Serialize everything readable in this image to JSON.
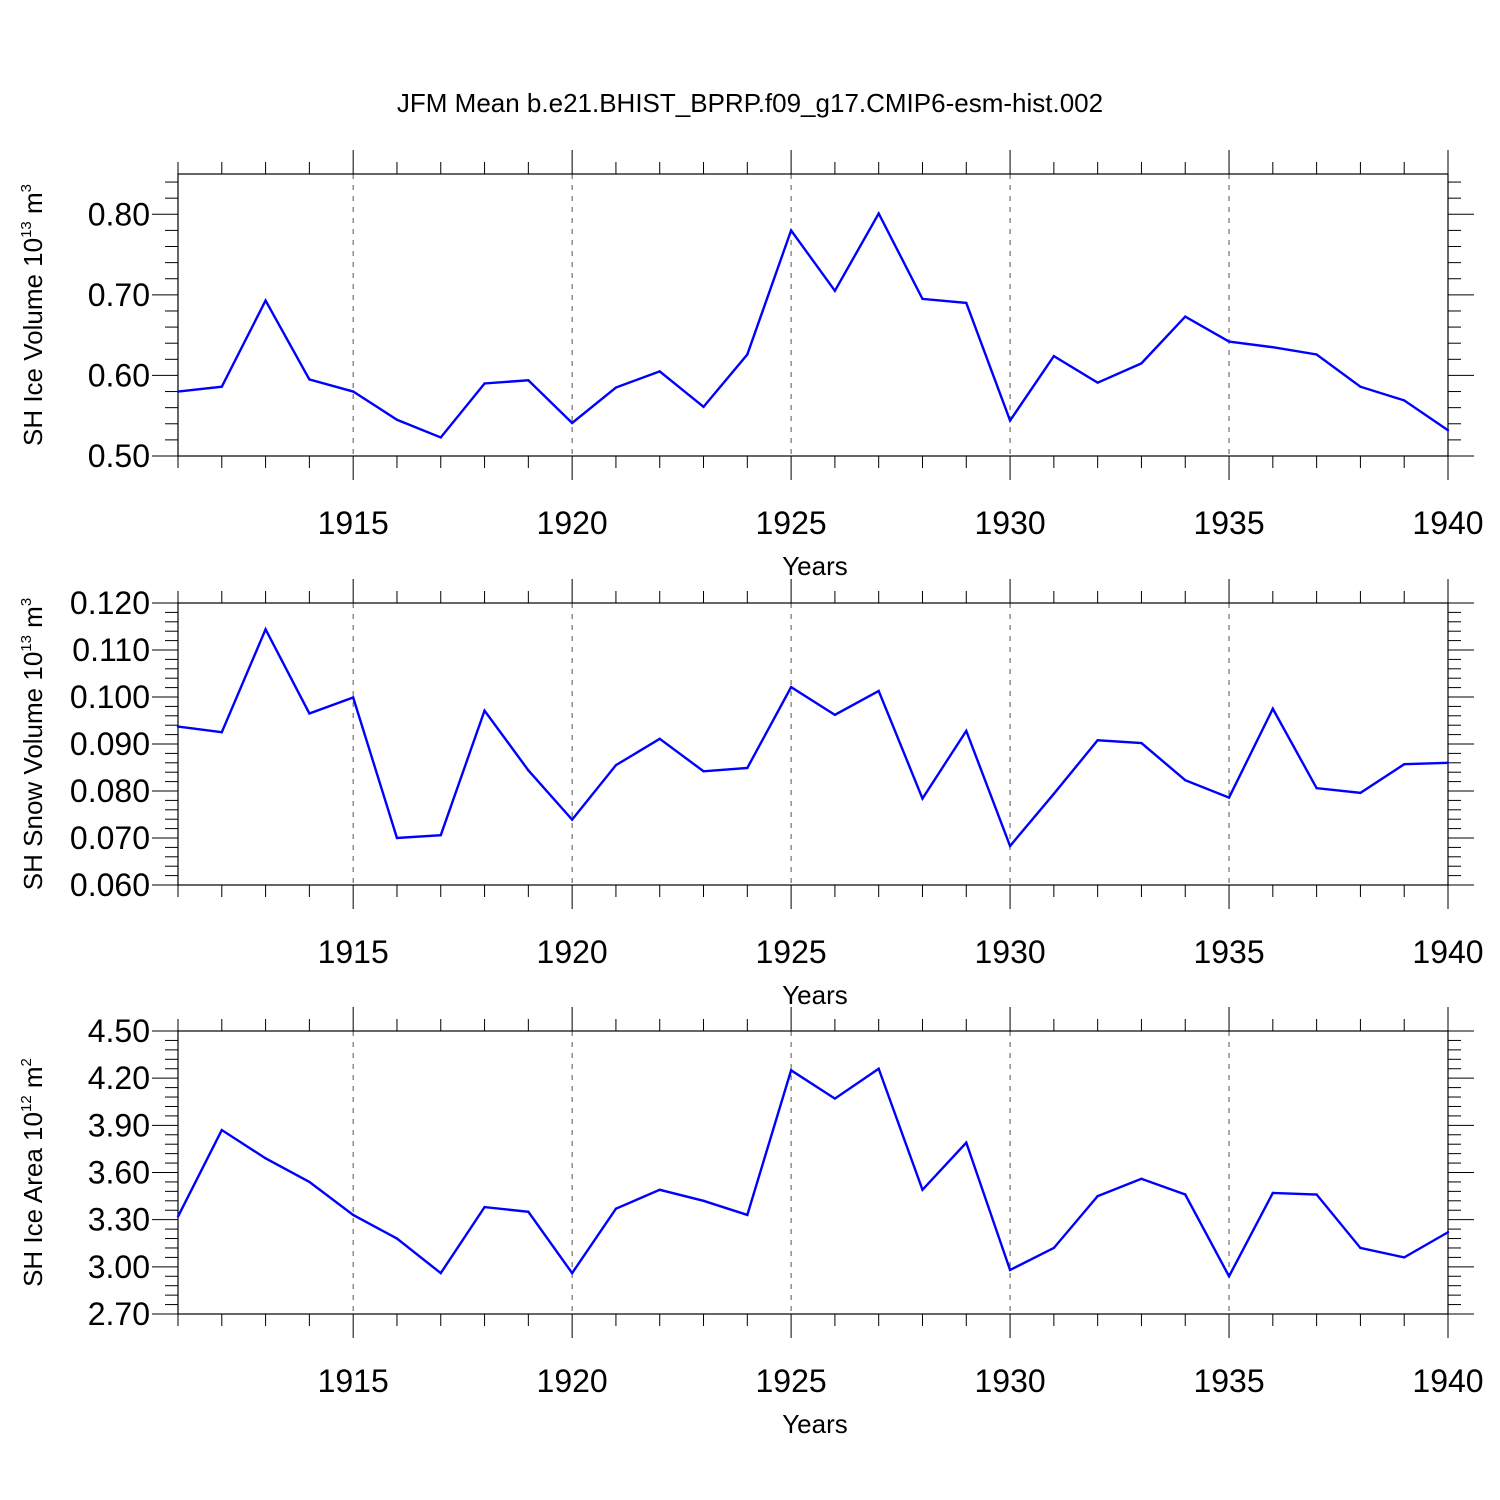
{
  "title": "JFM Mean b.e21.BHIST_BPRP.f09_g17.CMIP6-esm-hist.002",
  "colors": {
    "line": "#0000ff",
    "axis": "#000000",
    "grid": "#555555"
  },
  "chart_data": [
    {
      "type": "line",
      "xlabel": "Years",
      "ylabel": {
        "text": "SH Ice Volume 10",
        "exponent": "13",
        "unit": "m",
        "unit_exponent": "3"
      },
      "xlim": [
        1911,
        1940
      ],
      "ylim": [
        0.5,
        0.85
      ],
      "xticks": [
        1915,
        1920,
        1925,
        1930,
        1935,
        1940
      ],
      "yticks": [
        0.5,
        0.6,
        0.7,
        0.8
      ],
      "ytick_labels": [
        "0.50",
        "0.60",
        "0.70",
        "0.80"
      ],
      "x": [
        1911,
        1912,
        1913,
        1914,
        1915,
        1916,
        1917,
        1918,
        1919,
        1920,
        1921,
        1922,
        1923,
        1924,
        1925,
        1926,
        1927,
        1928,
        1929,
        1930,
        1931,
        1932,
        1933,
        1934,
        1935,
        1936,
        1937,
        1938,
        1939,
        1940
      ],
      "values": [
        0.58,
        0.586,
        0.693,
        0.595,
        0.58,
        0.545,
        0.523,
        0.59,
        0.594,
        0.541,
        0.585,
        0.605,
        0.561,
        0.626,
        0.78,
        0.705,
        0.801,
        0.695,
        0.69,
        0.544,
        0.624,
        0.591,
        0.615,
        0.673,
        0.642,
        0.635,
        0.626,
        0.586,
        0.569,
        0.532
      ]
    },
    {
      "type": "line",
      "xlabel": "Years",
      "ylabel": {
        "text": "SH Snow Volume 10",
        "exponent": "13",
        "unit": "m",
        "unit_exponent": "3"
      },
      "xlim": [
        1911,
        1940
      ],
      "ylim": [
        0.06,
        0.12
      ],
      "xticks": [
        1915,
        1920,
        1925,
        1930,
        1935,
        1940
      ],
      "yticks": [
        0.06,
        0.07,
        0.08,
        0.09,
        0.1,
        0.11,
        0.12
      ],
      "ytick_labels": [
        "0.060",
        "0.070",
        "0.080",
        "0.090",
        "0.100",
        "0.110",
        "0.120"
      ],
      "x": [
        1911,
        1912,
        1913,
        1914,
        1915,
        1916,
        1917,
        1918,
        1919,
        1920,
        1921,
        1922,
        1923,
        1924,
        1925,
        1926,
        1927,
        1928,
        1929,
        1930,
        1931,
        1932,
        1933,
        1934,
        1935,
        1936,
        1937,
        1938,
        1939,
        1940
      ],
      "values": [
        0.0937,
        0.0925,
        0.1144,
        0.0965,
        0.0999,
        0.07,
        0.0706,
        0.0971,
        0.0844,
        0.0739,
        0.0855,
        0.0911,
        0.0842,
        0.0849,
        0.1021,
        0.0962,
        0.1013,
        0.0784,
        0.0928,
        0.0683,
        0.0794,
        0.0908,
        0.0902,
        0.0823,
        0.0786,
        0.0975,
        0.0806,
        0.0796,
        0.0857,
        0.086
      ]
    },
    {
      "type": "line",
      "xlabel": "Years",
      "ylabel": {
        "text": "SH Ice Area 10",
        "exponent": "12",
        "unit": "m",
        "unit_exponent": "2"
      },
      "xlim": [
        1911,
        1940
      ],
      "ylim": [
        2.7,
        4.5
      ],
      "xticks": [
        1915,
        1920,
        1925,
        1930,
        1935,
        1940
      ],
      "yticks": [
        2.7,
        3.0,
        3.3,
        3.6,
        3.9,
        4.2,
        4.5
      ],
      "ytick_labels": [
        "2.70",
        "3.00",
        "3.30",
        "3.60",
        "3.90",
        "4.20",
        "4.50"
      ],
      "x": [
        1911,
        1912,
        1913,
        1914,
        1915,
        1916,
        1917,
        1918,
        1919,
        1920,
        1921,
        1922,
        1923,
        1924,
        1925,
        1926,
        1927,
        1928,
        1929,
        1930,
        1931,
        1932,
        1933,
        1934,
        1935,
        1936,
        1937,
        1938,
        1939,
        1940
      ],
      "values": [
        3.32,
        3.87,
        3.69,
        3.54,
        3.33,
        3.18,
        2.96,
        3.38,
        3.35,
        2.96,
        3.37,
        3.49,
        3.42,
        3.33,
        4.25,
        4.07,
        4.26,
        3.49,
        3.79,
        2.98,
        3.12,
        3.45,
        3.56,
        3.46,
        2.94,
        3.47,
        3.46,
        3.12,
        3.06,
        3.22
      ]
    }
  ]
}
